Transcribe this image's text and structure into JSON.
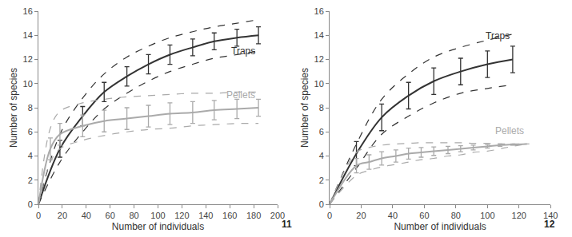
{
  "chart_data": [
    {
      "type": "line",
      "title": "11",
      "x_label": "Number of individuals",
      "y_label": "Number of species",
      "xlim": [
        0,
        200
      ],
      "xticks": [
        0,
        20,
        40,
        60,
        80,
        100,
        120,
        140,
        160,
        180,
        200
      ],
      "ylim": [
        0,
        16
      ],
      "yticks": [
        0,
        2,
        4,
        6,
        8,
        10,
        12,
        14,
        16
      ],
      "grid": false,
      "series": [
        {
          "name": "Traps",
          "color": "#333333",
          "line_style": "solid",
          "x": [
            0,
            18,
            37,
            55,
            74,
            92,
            110,
            129,
            147,
            166,
            184
          ],
          "values": [
            0,
            4.6,
            7.3,
            9.3,
            10.6,
            11.6,
            12.4,
            13.0,
            13.5,
            13.8,
            14.0
          ],
          "error": [
            null,
            0.7,
            0.8,
            0.8,
            0.8,
            0.8,
            0.8,
            0.7,
            0.7,
            0.7,
            0.7
          ],
          "upper": [
            0,
            5.8,
            8.8,
            10.8,
            12.2,
            13.1,
            13.8,
            14.3,
            14.7,
            15.0,
            15.3
          ],
          "lower": [
            0,
            3.5,
            6.0,
            7.9,
            9.2,
            10.2,
            11.0,
            11.6,
            12.1,
            12.4,
            12.7
          ]
        },
        {
          "name": "Pellets",
          "color": "#aaaaaa",
          "line_style": "solid",
          "x": [
            0,
            10,
            18,
            37,
            55,
            74,
            92,
            110,
            129,
            147,
            166,
            184
          ],
          "values": [
            0,
            4.6,
            5.8,
            6.5,
            6.9,
            7.1,
            7.3,
            7.5,
            7.6,
            7.8,
            7.9,
            8.0
          ],
          "error": [
            null,
            0.9,
            0.9,
            0.9,
            0.9,
            0.9,
            0.9,
            0.9,
            0.9,
            0.8,
            0.8,
            0.7
          ],
          "upper": [
            0,
            6.3,
            7.7,
            8.4,
            8.7,
            8.9,
            9.0,
            9.1,
            9.2,
            9.2,
            9.3,
            9.3
          ],
          "lower": [
            0,
            3.5,
            4.6,
            5.3,
            5.7,
            6.0,
            6.2,
            6.3,
            6.5,
            6.6,
            6.7,
            6.7
          ]
        }
      ]
    },
    {
      "type": "line",
      "title": "12",
      "x_label": "Number of individuals",
      "y_label": "Number of species",
      "xlim": [
        0,
        140
      ],
      "xticks": [
        0,
        20,
        40,
        60,
        80,
        100,
        120,
        140
      ],
      "ylim": [
        0,
        16
      ],
      "yticks": [
        0,
        2,
        4,
        6,
        8,
        10,
        12,
        14,
        16
      ],
      "grid": false,
      "series": [
        {
          "name": "Traps",
          "color": "#333333",
          "line_style": "solid",
          "x": [
            0,
            17,
            33,
            50,
            66,
            83,
            100,
            116
          ],
          "values": [
            0,
            4.2,
            7.2,
            9.0,
            10.2,
            11.0,
            11.6,
            12.0
          ],
          "error": [
            null,
            1.0,
            1.1,
            1.1,
            1.1,
            1.1,
            1.1,
            1.1
          ],
          "upper": [
            0,
            5.0,
            8.7,
            10.8,
            12.2,
            13.0,
            13.6,
            14.1
          ],
          "lower": [
            0,
            3.0,
            5.8,
            7.3,
            8.4,
            9.2,
            9.6,
            9.9
          ]
        },
        {
          "name": "Pellets",
          "color": "#aaaaaa",
          "line_style": "solid",
          "x": [
            0,
            17,
            25,
            33,
            42,
            50,
            58,
            66,
            75,
            83,
            91,
            100,
            108,
            116,
            125
          ],
          "values": [
            0,
            3.2,
            3.5,
            3.8,
            4.0,
            4.2,
            4.3,
            4.4,
            4.5,
            4.6,
            4.7,
            4.8,
            4.9,
            4.95,
            5.0
          ],
          "error": [
            null,
            0.6,
            0.6,
            0.55,
            0.5,
            0.45,
            0.4,
            0.35,
            0.3,
            0.25,
            0.2,
            0.15,
            0.1,
            0.05,
            0
          ],
          "upper": [
            0,
            4.3,
            4.7,
            4.9,
            5.0,
            5.05,
            5.1,
            5.1,
            5.1,
            5.1,
            5.05,
            5.05,
            5.0,
            5.0,
            5.0
          ],
          "lower": [
            0,
            2.4,
            2.8,
            3.1,
            3.3,
            3.5,
            3.7,
            3.8,
            4.0,
            4.1,
            4.3,
            4.4,
            4.6,
            4.8,
            5.0
          ]
        }
      ]
    }
  ]
}
